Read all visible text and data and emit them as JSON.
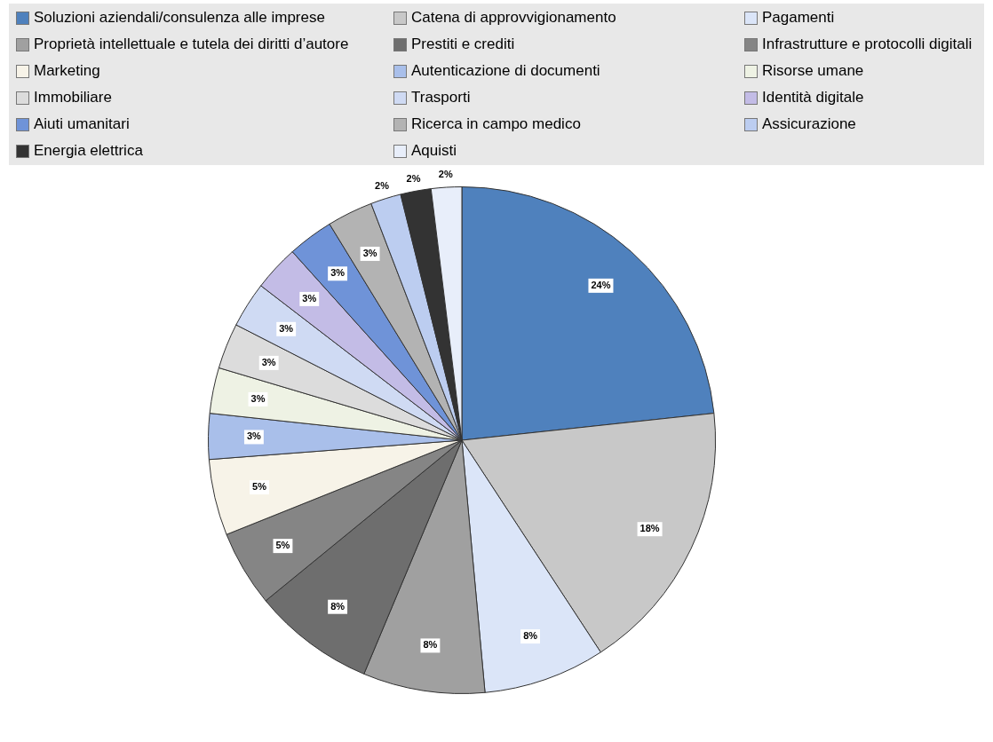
{
  "chart_data": {
    "type": "pie",
    "categories": [
      "Soluzioni aziendali/consulenza alle imprese",
      "Catena di approvvigionamento",
      "Pagamenti",
      "Proprietà intellettuale e tutela dei diritti d’autore",
      "Prestiti e crediti",
      "Infrastrutture e protocolli digitali",
      "Marketing",
      "Autenticazione di documenti",
      "Risorse umane",
      "Immobiliare",
      "Trasporti",
      "Identità digitale",
      "Aiuti umanitari",
      "Ricerca in campo medico",
      "Assicurazione",
      "Energia elettrica",
      "Aquisti"
    ],
    "values": [
      24,
      18,
      8,
      8,
      8,
      5,
      5,
      3,
      3,
      3,
      3,
      3,
      3,
      3,
      2,
      2,
      2
    ],
    "value_labels": [
      "24%",
      "18%",
      "8%",
      "8%",
      "8%",
      "5%",
      "5%",
      "3%",
      "3%",
      "3%",
      "3%",
      "3%",
      "3%",
      "3%",
      "2%",
      "2%",
      "2%"
    ],
    "colors": [
      "#4f81bd",
      "#c8c8c8",
      "#dbe5f8",
      "#a0a0a0",
      "#6e6e6e",
      "#858585",
      "#f7f3e8",
      "#a9bfea",
      "#eef2e4",
      "#dcdcdc",
      "#cfdaf3",
      "#c3bce6",
      "#6f93d8",
      "#b3b3b3",
      "#bccdf0",
      "#333333",
      "#e8eefa"
    ],
    "legend": "top"
  }
}
